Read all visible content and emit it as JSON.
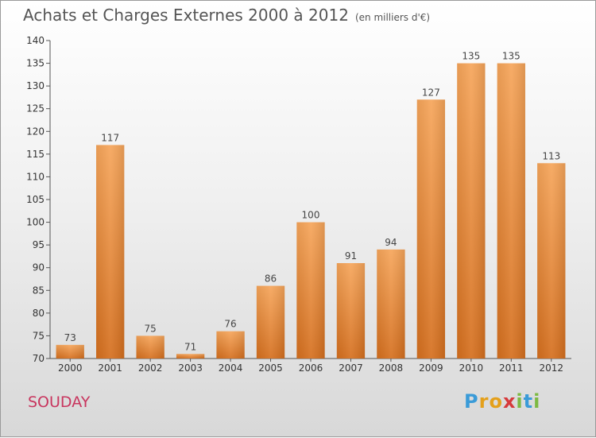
{
  "title": "Achats et Charges Externes 2000 à 2012",
  "subtitle": "(en milliers d'€)",
  "commune": "SOUDAY",
  "logo": {
    "letters": [
      "P",
      "r",
      "o",
      "x",
      "i",
      "t",
      "i"
    ],
    "colors": [
      "#3a9bd8",
      "#e4a01b",
      "#e4a01b",
      "#d6393b",
      "#7db942",
      "#3a9bd8",
      "#7db942"
    ]
  },
  "chart_data": {
    "type": "bar",
    "categories": [
      "2000",
      "2001",
      "2002",
      "2003",
      "2004",
      "2005",
      "2006",
      "2007",
      "2008",
      "2009",
      "2010",
      "2011",
      "2012"
    ],
    "values": [
      73,
      117,
      75,
      71,
      76,
      86,
      100,
      91,
      94,
      127,
      135,
      135,
      113
    ],
    "ylim": [
      70,
      140
    ],
    "yticks": [
      70,
      75,
      80,
      85,
      90,
      95,
      100,
      105,
      110,
      115,
      120,
      125,
      130,
      135,
      140
    ],
    "grid": false,
    "bar_color_top": "#f6a55a",
    "bar_color_bottom": "#d56f1e"
  }
}
